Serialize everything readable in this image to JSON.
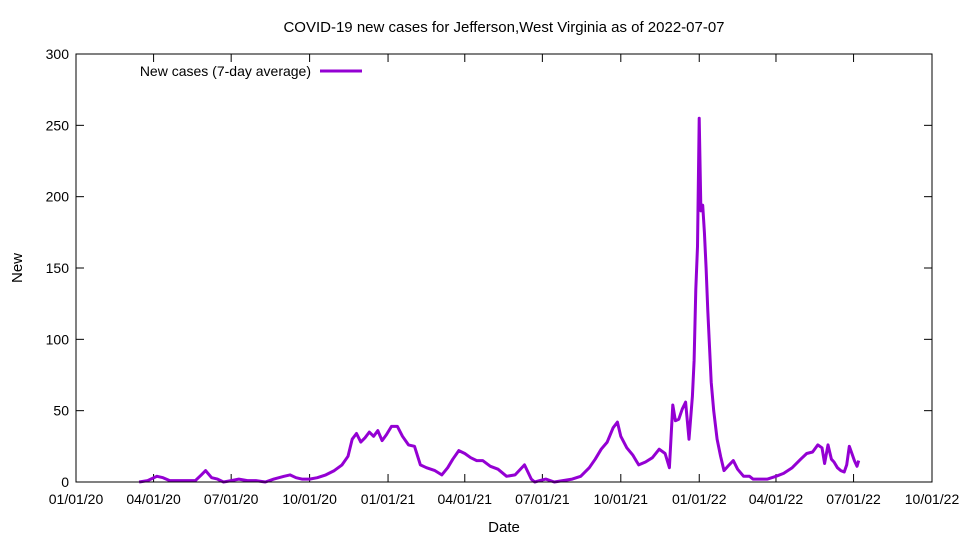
{
  "chart_data": {
    "type": "line",
    "title": "COVID-19 new cases for Jefferson,West Virginia as of 2022-07-07",
    "xlabel": "Date",
    "ylabel": "New",
    "xlim": [
      "2020-01-01",
      "2022-10-01"
    ],
    "ylim": [
      0,
      300
    ],
    "x_ticks": [
      "01/01/20",
      "04/01/20",
      "07/01/20",
      "10/01/20",
      "01/01/21",
      "04/01/21",
      "07/01/21",
      "10/01/21",
      "01/01/22",
      "04/01/22",
      "07/01/22",
      "10/01/22"
    ],
    "y_ticks": [
      0,
      50,
      100,
      150,
      200,
      250,
      300
    ],
    "grid": false,
    "legend_position": "top-left",
    "series": [
      {
        "name": "New cases (7-day average)",
        "color": "#9400d3",
        "x": [
          "2020-03-15",
          "2020-03-25",
          "2020-04-05",
          "2020-04-12",
          "2020-04-20",
          "2020-05-01",
          "2020-05-10",
          "2020-05-20",
          "2020-05-27",
          "2020-06-01",
          "2020-06-08",
          "2020-06-15",
          "2020-06-22",
          "2020-07-01",
          "2020-07-10",
          "2020-07-20",
          "2020-07-30",
          "2020-08-10",
          "2020-08-20",
          "2020-09-01",
          "2020-09-08",
          "2020-09-15",
          "2020-09-22",
          "2020-10-01",
          "2020-10-10",
          "2020-10-20",
          "2020-10-30",
          "2020-11-08",
          "2020-11-15",
          "2020-11-20",
          "2020-11-25",
          "2020-11-30",
          "2020-12-05",
          "2020-12-10",
          "2020-12-15",
          "2020-12-20",
          "2020-12-25",
          "2020-12-30",
          "2021-01-05",
          "2021-01-12",
          "2021-01-18",
          "2021-01-25",
          "2021-02-01",
          "2021-02-08",
          "2021-02-15",
          "2021-02-25",
          "2021-03-05",
          "2021-03-12",
          "2021-03-18",
          "2021-03-25",
          "2021-04-01",
          "2021-04-08",
          "2021-04-15",
          "2021-04-22",
          "2021-05-01",
          "2021-05-10",
          "2021-05-20",
          "2021-05-30",
          "2021-06-10",
          "2021-06-18",
          "2021-06-22",
          "2021-06-28",
          "2021-07-05",
          "2021-07-15",
          "2021-07-25",
          "2021-08-05",
          "2021-08-15",
          "2021-08-25",
          "2021-09-01",
          "2021-09-08",
          "2021-09-15",
          "2021-09-22",
          "2021-09-27",
          "2021-10-01",
          "2021-10-08",
          "2021-10-15",
          "2021-10-22",
          "2021-10-30",
          "2021-11-07",
          "2021-11-15",
          "2021-11-22",
          "2021-11-27",
          "2021-12-01",
          "2021-12-04",
          "2021-12-08",
          "2021-12-12",
          "2021-12-16",
          "2021-12-20",
          "2021-12-24",
          "2021-12-26",
          "2021-12-28",
          "2021-12-30",
          "2022-01-01",
          "2022-01-03",
          "2022-01-05",
          "2022-01-07",
          "2022-01-09",
          "2022-01-11",
          "2022-01-13",
          "2022-01-15",
          "2022-01-18",
          "2022-01-22",
          "2022-01-26",
          "2022-01-30",
          "2022-02-05",
          "2022-02-10",
          "2022-02-15",
          "2022-02-22",
          "2022-03-01",
          "2022-03-05",
          "2022-03-10",
          "2022-03-15",
          "2022-03-22",
          "2022-04-01",
          "2022-04-10",
          "2022-04-20",
          "2022-04-30",
          "2022-05-07",
          "2022-05-14",
          "2022-05-20",
          "2022-05-25",
          "2022-05-28",
          "2022-06-01",
          "2022-06-05",
          "2022-06-08",
          "2022-06-12",
          "2022-06-16",
          "2022-06-20",
          "2022-06-23",
          "2022-06-26",
          "2022-06-29",
          "2022-07-02",
          "2022-07-05",
          "2022-07-07"
        ],
        "y": [
          0,
          1,
          4,
          3,
          1,
          1,
          1,
          1,
          5,
          8,
          3,
          2,
          0,
          1,
          2,
          1,
          1,
          0,
          2,
          4,
          5,
          3,
          2,
          2,
          3,
          5,
          8,
          12,
          18,
          30,
          34,
          28,
          31,
          35,
          32,
          36,
          29,
          33,
          39,
          39,
          32,
          26,
          25,
          12,
          10,
          8,
          5,
          10,
          16,
          22,
          20,
          17,
          15,
          15,
          11,
          9,
          4,
          5,
          12,
          2,
          0,
          1,
          2,
          0,
          1,
          2,
          4,
          10,
          16,
          23,
          28,
          38,
          42,
          32,
          24,
          19,
          12,
          14,
          17,
          23,
          20,
          10,
          54,
          43,
          44,
          51,
          56,
          30,
          60,
          85,
          135,
          165,
          255,
          190,
          194,
          175,
          150,
          120,
          95,
          70,
          50,
          30,
          18,
          8,
          12,
          15,
          9,
          4,
          4,
          2,
          2,
          2,
          2,
          4,
          6,
          10,
          16,
          20,
          21,
          26,
          24,
          13,
          26,
          16,
          14,
          10,
          8,
          7,
          12,
          25,
          20,
          15,
          11,
          15
        ]
      }
    ]
  }
}
